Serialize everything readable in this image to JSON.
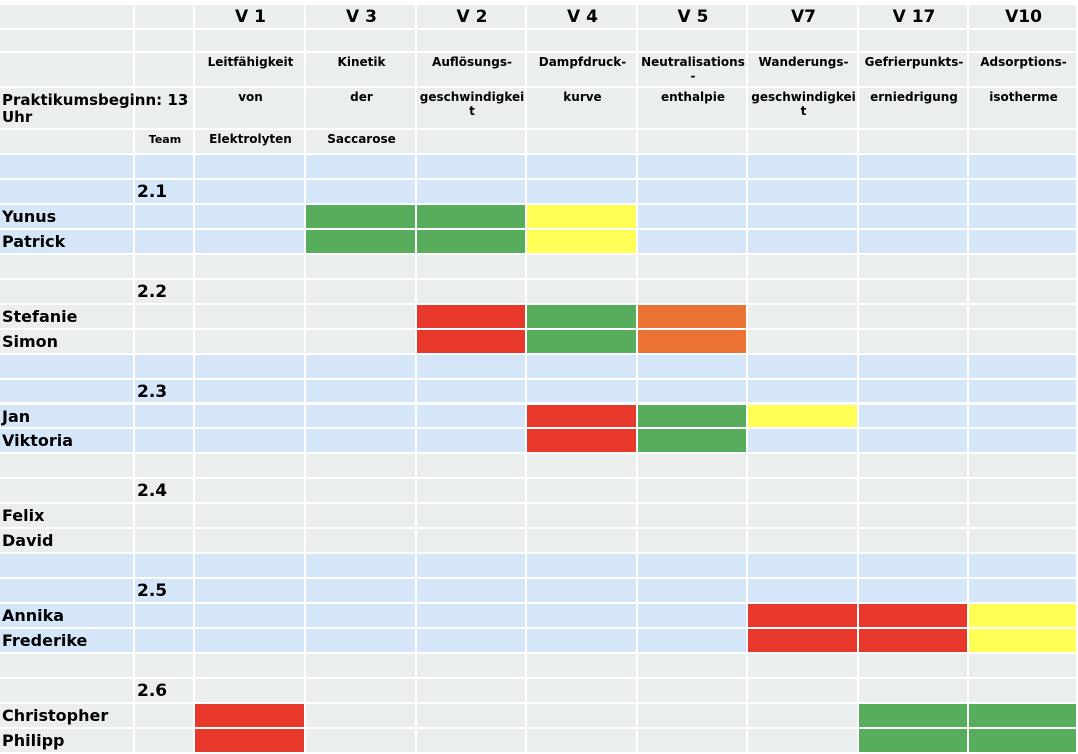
{
  "header": {
    "start": "Praktikumsbeginn: 13Uhr",
    "team_label": "Team"
  },
  "columns": [
    {
      "code": "V 1",
      "lines": [
        "Leitfähigkeit",
        "von",
        "Elektrolyten"
      ]
    },
    {
      "code": "V 3",
      "lines": [
        "Kinetik",
        "der",
        "Saccarose"
      ]
    },
    {
      "code": "V 2",
      "lines": [
        "Auflösungs-",
        "geschwindigkeit"
      ]
    },
    {
      "code": "V 4",
      "lines": [
        "Dampfdruck-",
        "kurve"
      ]
    },
    {
      "code": "V 5",
      "lines": [
        "Neutralisations-",
        "enthalpie"
      ]
    },
    {
      "code": "V7",
      "lines": [
        "Wanderungs-",
        "geschwindigkeit"
      ]
    },
    {
      "code": "V 17",
      "lines": [
        "Gefrierpunkts-",
        "erniedrigung"
      ]
    },
    {
      "code": "V10",
      "lines": [
        "Adsorptions-",
        "isotherme"
      ]
    }
  ],
  "groups": [
    {
      "team": "2.1",
      "members": [
        {
          "name": "Yunus",
          "cells": [
            null,
            "#57ad5b",
            "#57ad5b",
            "#ffff55",
            null,
            null,
            null,
            null
          ]
        },
        {
          "name": "Patrick",
          "cells": [
            null,
            "#57ad5b",
            "#57ad5b",
            "#ffff55",
            null,
            null,
            null,
            null
          ]
        }
      ]
    },
    {
      "team": "2.2",
      "members": [
        {
          "name": "Stefanie",
          "cells": [
            null,
            null,
            "#e8382b",
            "#57ad5b",
            "#ea7232",
            null,
            null,
            null
          ]
        },
        {
          "name": "Simon",
          "cells": [
            null,
            null,
            "#e8382b",
            "#57ad5b",
            "#ea7232",
            null,
            null,
            null
          ]
        }
      ]
    },
    {
      "team": "2.3",
      "members": [
        {
          "name": "Jan",
          "cells": [
            null,
            null,
            null,
            "#e8382b",
            "#57ad5b",
            "#ffff55",
            null,
            null
          ]
        },
        {
          "name": "Viktoria",
          "cells": [
            null,
            null,
            null,
            "#e8382b",
            "#57ad5b",
            null,
            null,
            null
          ]
        }
      ]
    },
    {
      "team": "2.4",
      "members": [
        {
          "name": "Felix",
          "cells": [
            null,
            null,
            null,
            null,
            null,
            null,
            null,
            null
          ]
        },
        {
          "name": "David",
          "cells": [
            null,
            null,
            null,
            null,
            null,
            null,
            null,
            null
          ]
        }
      ]
    },
    {
      "team": "2.5",
      "members": [
        {
          "name": "Annika",
          "cells": [
            null,
            null,
            null,
            null,
            null,
            "#e8382b",
            "#e8382b",
            "#ffff55"
          ]
        },
        {
          "name": "Frederike",
          "cells": [
            null,
            null,
            null,
            null,
            null,
            "#e8382b",
            "#e8382b",
            "#ffff55"
          ]
        }
      ]
    },
    {
      "team": "2.6",
      "members": [
        {
          "name": "Christopher",
          "cells": [
            "#e8382b",
            null,
            null,
            null,
            null,
            null,
            "#57ad5b",
            "#57ad5b"
          ]
        },
        {
          "name": "Philipp",
          "cells": [
            "#e8382b",
            null,
            null,
            null,
            null,
            null,
            "#57ad5b",
            "#57ad5b"
          ]
        }
      ]
    }
  ]
}
